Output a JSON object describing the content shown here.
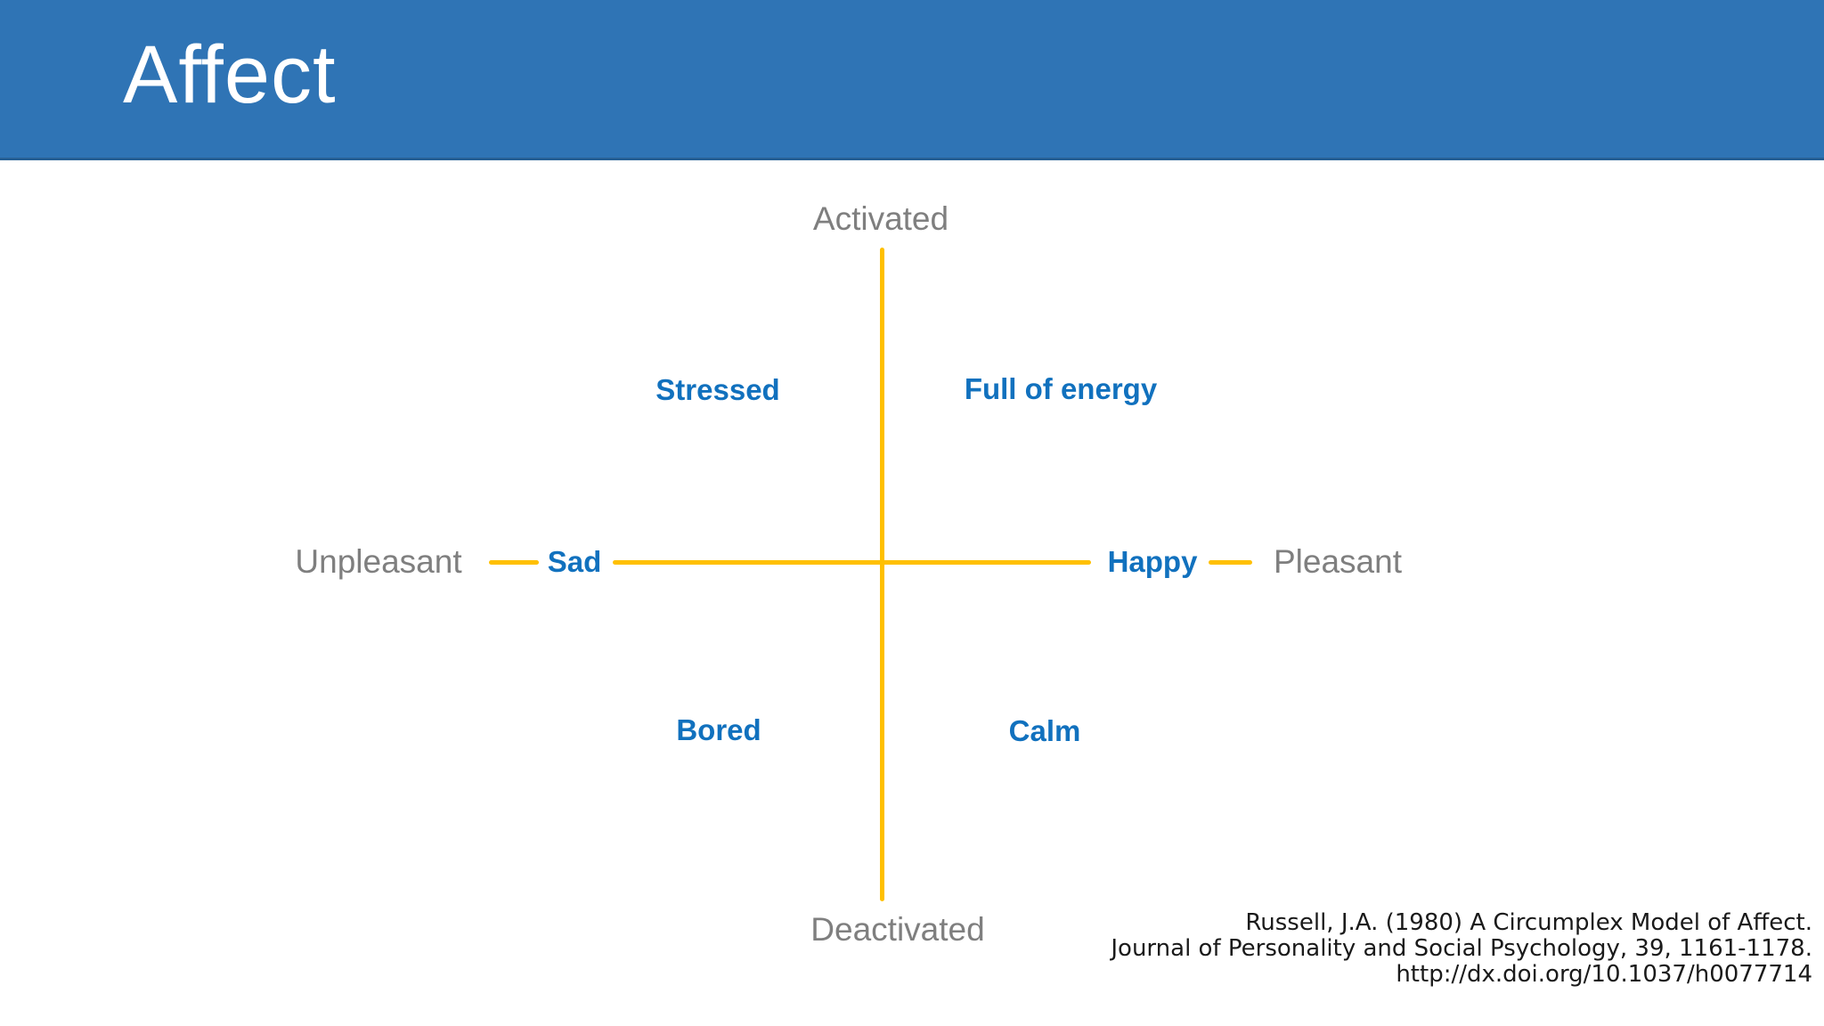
{
  "slide": {
    "title": "Affect"
  },
  "diagram": {
    "axes": {
      "vertical": {
        "top_label": "Activated",
        "bottom_label": "Deactivated"
      },
      "horizontal": {
        "left_label": "Unpleasant",
        "right_label": "Pleasant"
      }
    },
    "axis_emotions": {
      "left": "Sad",
      "right": "Happy"
    },
    "quadrants": {
      "top_left": "Stressed",
      "top_right": "Full of energy",
      "bottom_left": "Bored",
      "bottom_right": "Calm"
    },
    "colors": {
      "header_bg": "#2F74B5",
      "header_text": "#FFFFFF",
      "axis": "#FFC000",
      "emotion_text": "#1171BE",
      "axis_label_text": "#7F7F7F",
      "citation_text": "#1A1A1A"
    }
  },
  "citation": {
    "lines": [
      "Russell, J.A. (1980) A Circumplex Model of Affect.",
      "Journal of Personality and Social Psychology, 39, 1161-1178.",
      "http://dx.doi.org/10.1037/h0077714"
    ]
  }
}
